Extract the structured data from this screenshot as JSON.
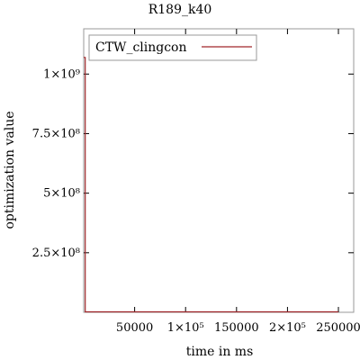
{
  "chart_data": {
    "type": "line",
    "title": "R189_k40",
    "xlabel": "time in ms",
    "ylabel": "optimization value",
    "xlim": [
      0,
      265000
    ],
    "ylim": [
      0,
      1190000000
    ],
    "x_ticks": [
      {
        "value": 50000,
        "label": "50000"
      },
      {
        "value": 100000,
        "label": "1×10⁵"
      },
      {
        "value": 150000,
        "label": "150000"
      },
      {
        "value": 200000,
        "label": "2×10⁵"
      },
      {
        "value": 250000,
        "label": "250000"
      }
    ],
    "y_ticks": [
      {
        "value": 250000000,
        "label": "2.5×10⁸"
      },
      {
        "value": 500000000,
        "label": "5×10⁸"
      },
      {
        "value": 750000000,
        "label": "7.5×10⁸"
      },
      {
        "value": 1000000000,
        "label": "1×10⁹"
      }
    ],
    "grid": false,
    "legend_position": "top-left",
    "series": [
      {
        "name": "CTW_clingcon",
        "color": "#a0262a",
        "points": [
          {
            "x": 0,
            "y": 1070000000
          },
          {
            "x": 1500,
            "y": 1070000000
          },
          {
            "x": 1500,
            "y": 2000000
          },
          {
            "x": 250000,
            "y": 2000000
          }
        ]
      }
    ]
  }
}
